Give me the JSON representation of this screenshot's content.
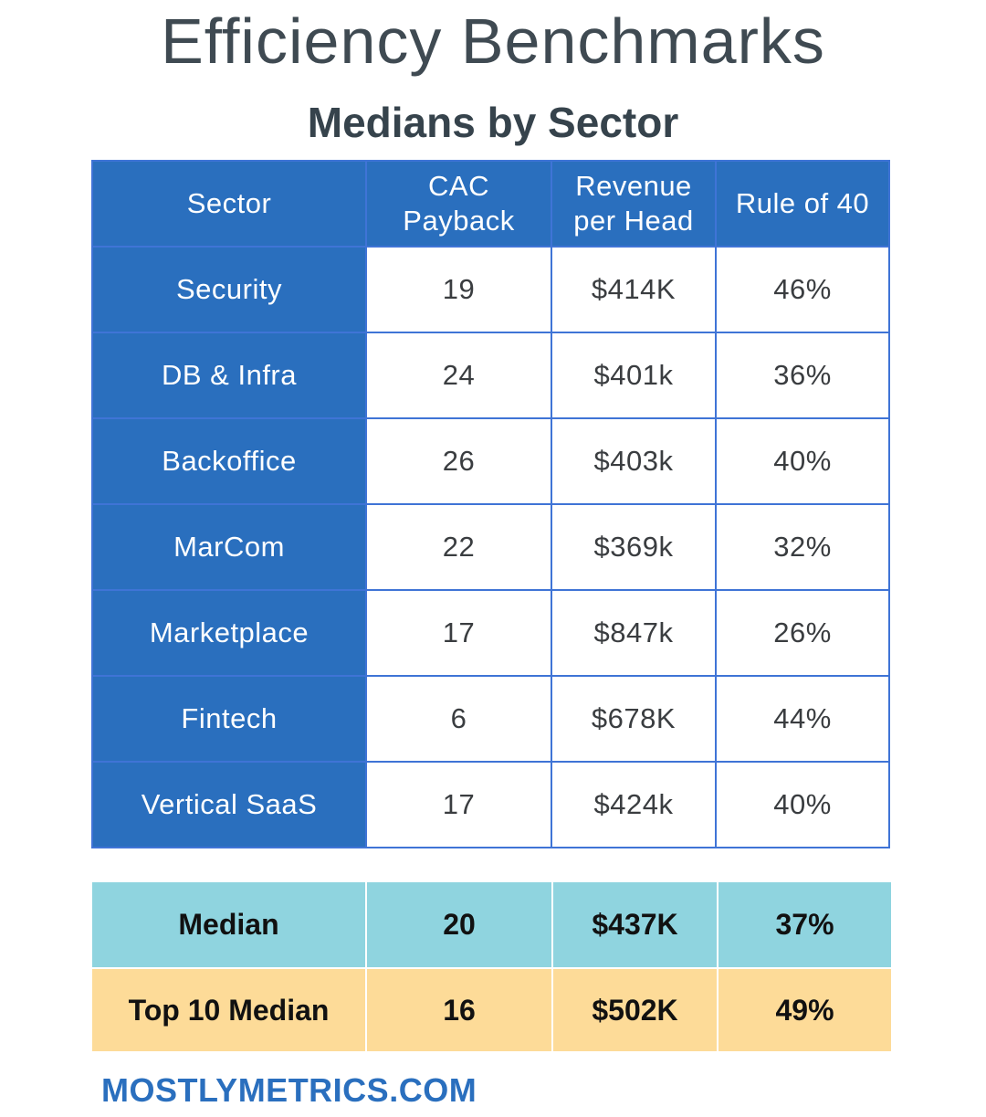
{
  "title": "Efficiency Benchmarks",
  "subtitle": "Medians by Sector",
  "chart_data": {
    "type": "table",
    "columns": [
      "Sector",
      "CAC Payback",
      "Revenue per Head",
      "Rule of 40"
    ],
    "rows": [
      [
        "Security",
        "19",
        "$414K",
        "46%"
      ],
      [
        "DB & Infra",
        "24",
        "$401k",
        "36%"
      ],
      [
        "Backoffice",
        "26",
        "$403k",
        "40%"
      ],
      [
        "MarCom",
        "22",
        "$369k",
        "32%"
      ],
      [
        "Marketplace",
        "17",
        "$847k",
        "26%"
      ],
      [
        "Fintech",
        "6",
        "$678K",
        "44%"
      ],
      [
        "Vertical SaaS",
        "17",
        "$424k",
        "40%"
      ]
    ],
    "summary_rows": [
      [
        "Median",
        "20",
        "$437K",
        "37%"
      ],
      [
        "Top 10 Median",
        "16",
        "$502K",
        "49%"
      ]
    ]
  },
  "colors": {
    "header_blue": "#2a6fbe",
    "grid_blue": "#3f74d6",
    "median_row": "#8fd4df",
    "top10_row": "#fddb98"
  },
  "footer": "MOSTLYMETRICS.COM"
}
